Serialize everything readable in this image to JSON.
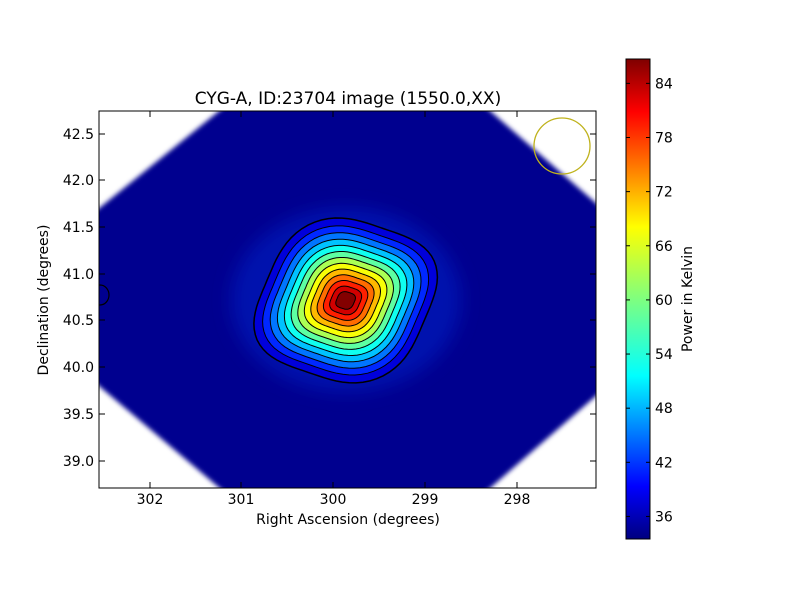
{
  "chart_data": {
    "type": "heatmap",
    "title": "CYG-A, ID:23704 image (1550.0,XX)",
    "xlabel": "Right Ascension (degrees)",
    "ylabel": "Declination (degrees)",
    "xlim": [
      302.5,
      297.2
    ],
    "ylim": [
      38.72,
      42.74
    ],
    "x_ticks": [
      302,
      301,
      300,
      299,
      298
    ],
    "y_ticks": [
      39.0,
      39.5,
      40.0,
      40.5,
      41.0,
      41.5,
      42.0,
      42.5
    ],
    "x_tick_labels": [
      "302",
      "301",
      "300",
      "299",
      "298"
    ],
    "y_tick_labels": [
      "39.0",
      "39.5",
      "40.0",
      "40.5",
      "41.0",
      "41.5",
      "42.0",
      "42.5"
    ],
    "colorbar": {
      "label": "Power in Kelvin",
      "range": [
        33.5,
        86.7
      ],
      "ticks": [
        36,
        42,
        48,
        54,
        60,
        66,
        72,
        78,
        84
      ],
      "tick_labels": [
        "36",
        "42",
        "48",
        "54",
        "60",
        "66",
        "72",
        "78",
        "84"
      ],
      "colormap": "jet"
    },
    "source": {
      "name": "CYG-A",
      "ra": 299.87,
      "dec": 40.72,
      "peak": 86.5
    },
    "background_level": 34,
    "contour_count": 13,
    "beam_circle": {
      "ra": 297.55,
      "dec": 42.36,
      "radius_deg": 0.3,
      "color": "#bfb21c"
    }
  }
}
